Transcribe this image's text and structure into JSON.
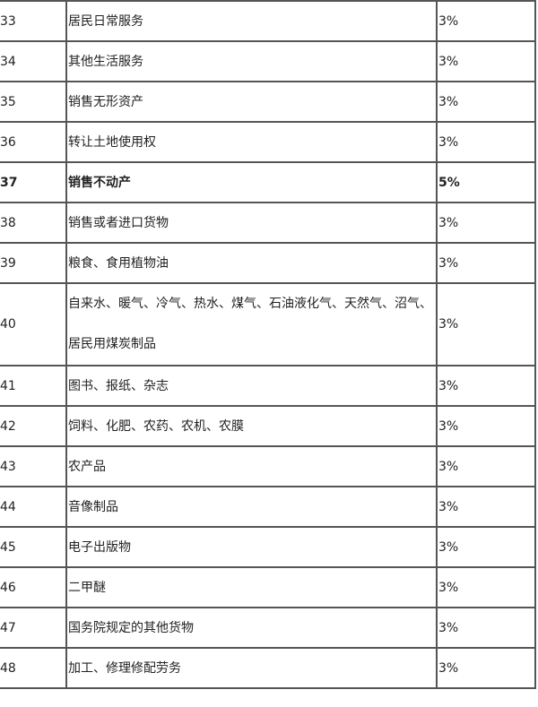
{
  "rows": [
    {
      "no": "33",
      "item": "居民日常服务",
      "rate": "3%"
    },
    {
      "no": "34",
      "item": "其他生活服务",
      "rate": "3%"
    },
    {
      "no": "35",
      "item": "销售无形资产",
      "rate": "3%"
    },
    {
      "no": "36",
      "item": "转让土地使用权",
      "rate": "3%"
    },
    {
      "no": "37",
      "item": "销售不动产",
      "rate": "5%",
      "bold": true
    },
    {
      "no": "38",
      "item": "销售或者进口货物",
      "rate": "3%"
    },
    {
      "no": "39",
      "item": "粮食、食用植物油",
      "rate": "3%"
    },
    {
      "no": "40",
      "item": "自来水、暖气、冷气、热水、煤气、石油液化气、天然气、沼气、居民用煤炭制品",
      "rate": "3%",
      "tall": true
    },
    {
      "no": "41",
      "item": "图书、报纸、杂志",
      "rate": "3%"
    },
    {
      "no": "42",
      "item": "饲料、化肥、农药、农机、农膜",
      "rate": "3%"
    },
    {
      "no": "43",
      "item": "农产品",
      "rate": "3%"
    },
    {
      "no": "44",
      "item": "音像制品",
      "rate": "3%"
    },
    {
      "no": "45",
      "item": "电子出版物",
      "rate": "3%"
    },
    {
      "no": "46",
      "item": "二甲醚",
      "rate": "3%"
    },
    {
      "no": "47",
      "item": "国务院规定的其他货物",
      "rate": "3%"
    },
    {
      "no": "48",
      "item": "加工、修理修配劳务",
      "rate": "3%"
    }
  ]
}
